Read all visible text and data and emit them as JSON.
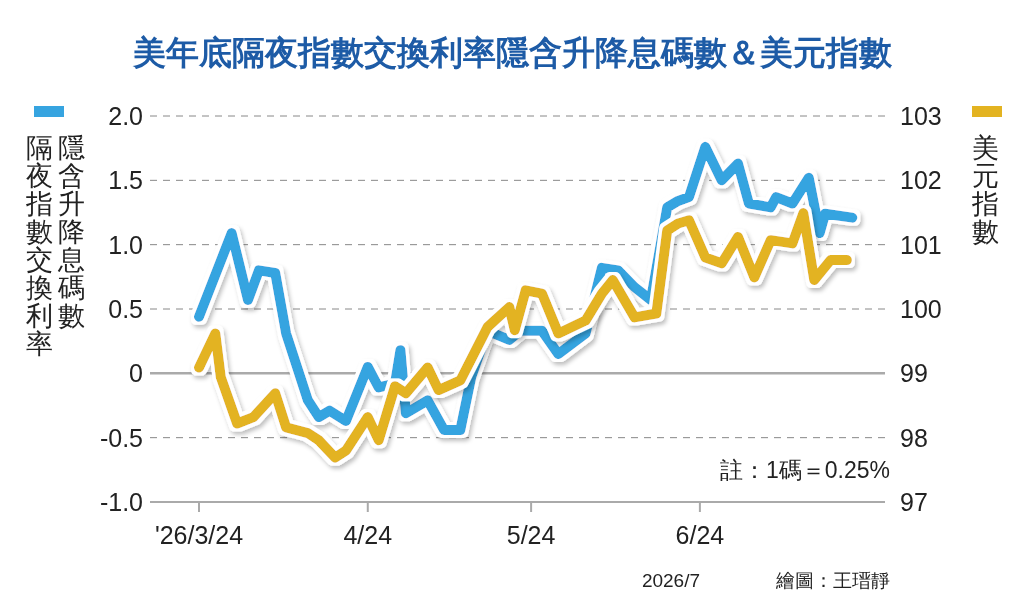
{
  "chart_data": {
    "type": "line",
    "title": "美年底隔夜指數交換利率隱含升降息碼數＆美元指數",
    "ylabel": "隔夜指數交換利率隱含升降息碼數",
    "y2label": "美元指數",
    "xlim": [
      "2026-03-15",
      "2026-07-28"
    ],
    "xticks": [
      {
        "value": "2026-03-24",
        "label": "'26/3/24"
      },
      {
        "value": "2026-04-24",
        "label": "4/24"
      },
      {
        "value": "2026-05-24",
        "label": "5/24"
      },
      {
        "value": "2026-06-24",
        "label": "6/24"
      }
    ],
    "ylim": [
      -1,
      2
    ],
    "yticks": [
      {
        "value": -1,
        "label": "-1.0"
      },
      {
        "value": -0.5,
        "label": "-0.5"
      },
      0,
      {
        "value": 0.5,
        "label": "0.5"
      },
      {
        "value": 1,
        "label": "1.0"
      },
      {
        "value": 1.5,
        "label": "1.5"
      },
      {
        "value": 2,
        "label": "2.0"
      }
    ],
    "y2lim": [
      97,
      103
    ],
    "y2ticks": [
      97,
      98,
      99,
      100,
      101,
      102,
      103
    ],
    "grid": "y",
    "line_style": "solid",
    "ref_lines": [
      {
        "axis": "y",
        "value": 0,
        "color": "#aaaaaa",
        "line_style": "solid"
      }
    ],
    "series": [
      {
        "color": "#36a4e0",
        "x": [
          "2026-03-24",
          "2026-03-30",
          "2026-04-02",
          "2026-04-04",
          "2026-04-07",
          "2026-04-09",
          "2026-04-13",
          "2026-04-15",
          "2026-04-17",
          "2026-04-20",
          "2026-04-24",
          "2026-04-26",
          "2026-04-29",
          "2026-04-30",
          "2026-05-01",
          "2026-05-05",
          "2026-05-08",
          "2026-05-11",
          "2026-05-13",
          "2026-05-16",
          "2026-05-20",
          "2026-05-22",
          "2026-05-26",
          "2026-05-29",
          "2026-06-03",
          "2026-06-06",
          "2026-06-09",
          "2026-06-12",
          "2026-06-15",
          "2026-06-18",
          "2026-06-20",
          "2026-06-22",
          "2026-06-25",
          "2026-06-28",
          "2026-07-01",
          "2026-07-03",
          "2026-07-07",
          "2026-07-08",
          "2026-07-11",
          "2026-07-14",
          "2026-07-16",
          "2026-07-17",
          "2026-07-22"
        ],
        "values": [
          0.44,
          1.09,
          0.57,
          0.8,
          0.78,
          0.31,
          -0.21,
          -0.34,
          -0.29,
          -0.37,
          0.05,
          -0.11,
          -0.08,
          0.18,
          -0.31,
          -0.21,
          -0.44,
          -0.44,
          -0.03,
          0.33,
          0.26,
          0.33,
          0.33,
          0.15,
          0.31,
          0.82,
          0.8,
          0.67,
          0.57,
          1.29,
          1.34,
          1.37,
          1.76,
          1.5,
          1.63,
          1.32,
          1.29,
          1.37,
          1.32,
          1.52,
          1.09,
          1.24,
          1.21
        ]
      },
      {
        "color": "#e3b321",
        "axis": "y2",
        "x": [
          "2026-03-24",
          "2026-03-27",
          "2026-03-28",
          "2026-03-31",
          "2026-04-03",
          "2026-04-07",
          "2026-04-09",
          "2026-04-13",
          "2026-04-15",
          "2026-04-18",
          "2026-04-20",
          "2026-04-24",
          "2026-04-26",
          "2026-04-29",
          "2026-05-01",
          "2026-05-05",
          "2026-05-07",
          "2026-05-11",
          "2026-05-16",
          "2026-05-20",
          "2026-05-21",
          "2026-05-23",
          "2026-05-26",
          "2026-05-29",
          "2026-06-03",
          "2026-06-06",
          "2026-06-08",
          "2026-06-12",
          "2026-06-16",
          "2026-06-18",
          "2026-06-20",
          "2026-06-22",
          "2026-06-25",
          "2026-06-28",
          "2026-07-01",
          "2026-07-04",
          "2026-07-07",
          "2026-07-11",
          "2026-07-13",
          "2026-07-15",
          "2026-07-18",
          "2026-07-21"
        ],
        "values": [
          99.09,
          99.62,
          98.94,
          98.22,
          98.32,
          98.69,
          98.16,
          98.07,
          97.96,
          97.69,
          97.8,
          98.32,
          97.96,
          98.8,
          98.69,
          99.09,
          98.74,
          98.89,
          99.72,
          100.03,
          99.67,
          100.29,
          100.24,
          99.62,
          99.82,
          100.24,
          100.45,
          99.87,
          99.93,
          101.22,
          101.33,
          101.38,
          100.8,
          100.71,
          101.12,
          100.49,
          101.07,
          101.02,
          101.49,
          100.45,
          100.76,
          100.76
        ]
      }
    ],
    "annotations": [
      "註：1碼＝0.25%",
      "2026/7",
      "繪圖：王瑨靜"
    ]
  }
}
